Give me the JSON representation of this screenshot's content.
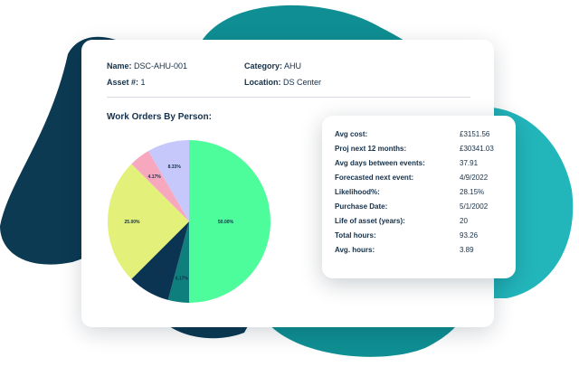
{
  "colors": {
    "blob_dark": "#0b3a52",
    "blob_teal": "#0f8f93",
    "blob_cyan": "#22b6bb",
    "text": "#14304a"
  },
  "asset": {
    "name_label": "Name:",
    "name_value": "DSC-AHU-001",
    "asset_label": "Asset #:",
    "asset_value": "1",
    "category_label": "Category:",
    "category_value": "AHU",
    "location_label": "Location:",
    "location_value": "DS Center"
  },
  "section_title": "Work Orders By Person:",
  "chart_data": {
    "type": "pie",
    "title": "Work Orders By Person:",
    "slices": [
      {
        "value": 50.0,
        "label": "50.00%",
        "color": "#4dfc9a"
      },
      {
        "value": 4.17,
        "label": "4.17%",
        "color": "#0f7f7d"
      },
      {
        "value": 8.33,
        "label": "8.33%",
        "color": "#0a3451"
      },
      {
        "value": 25.0,
        "label": "25.00%",
        "color": "#e3f07a"
      },
      {
        "value": 4.17,
        "label": "4.17%",
        "color": "#f7a8bf"
      },
      {
        "value": 8.33,
        "label": "8.33%",
        "color": "#c6c7fb"
      }
    ]
  },
  "stats": [
    {
      "label": "Avg cost:",
      "value": "£3151.56"
    },
    {
      "label": "Proj next 12 months:",
      "value": "£30341.03"
    },
    {
      "label": "Avg days between events:",
      "value": "37.91"
    },
    {
      "label": "Forecasted next event:",
      "value": "4/9/2022"
    },
    {
      "label": "Likelihood%:",
      "value": "28.15%"
    },
    {
      "label": "Purchase Date:",
      "value": "5/1/2002"
    },
    {
      "label": "Life of asset (years):",
      "value": "20"
    },
    {
      "label": "Total hours:",
      "value": "93.26"
    },
    {
      "label": "Avg. hours:",
      "value": "3.89"
    }
  ]
}
